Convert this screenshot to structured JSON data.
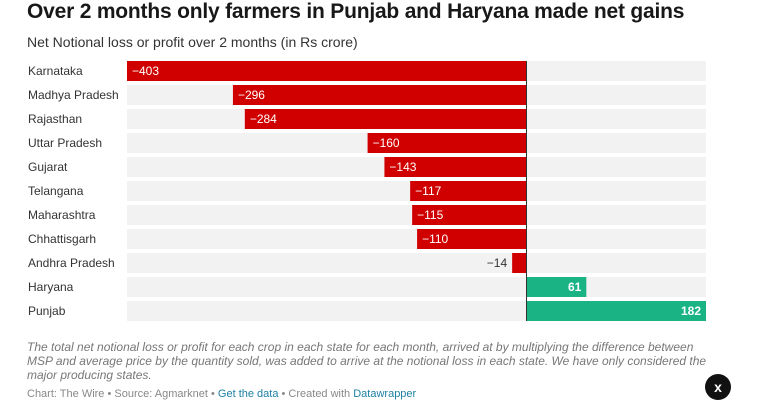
{
  "header": {
    "title": "Over 2 months only farmers in Punjab and Haryana made net gains",
    "subtitle": "Net Notional loss or profit over 2 months (in Rs crore)"
  },
  "chart_data": {
    "type": "bar",
    "orientation": "horizontal",
    "categories": [
      "Karnataka",
      "Madhya Pradesh",
      "Rajasthan",
      "Uttar Pradesh",
      "Gujarat",
      "Telangana",
      "Maharashtra",
      "Chhattisgarh",
      "Andhra Pradesh",
      "Haryana",
      "Punjab"
    ],
    "values": [
      -403,
      -296,
      -284,
      -160,
      -143,
      -117,
      -115,
      -110,
      -14,
      61,
      182
    ],
    "value_labels": [
      "−403",
      "−296",
      "−284",
      "−160",
      "−143",
      "−117",
      "−115",
      "−110",
      "−14",
      "61",
      "182"
    ],
    "xlim": [
      -403,
      182
    ],
    "title": "Over 2 months only farmers in Punjab and Haryana made net gains",
    "subtitle": "Net Notional loss or profit over 2 months (in Rs crore)",
    "colors": {
      "negative": "#d00000",
      "positive": "#1ab384",
      "row_background": "#f2f2f2"
    }
  },
  "notes": "The total net notional loss or profit for each crop in each state for each month, arrived at by multiplying the difference between MSP and average price by the quantity sold, was added to arrive at the notional loss in each state. We have only considered the major producing states.",
  "footer": {
    "prefix": "Chart: The Wire • Source: Agmarknet • ",
    "get_data": "Get the data",
    "middle": " • Created with ",
    "datawrapper": "Datawrapper"
  },
  "close_button": {
    "label": "x"
  }
}
